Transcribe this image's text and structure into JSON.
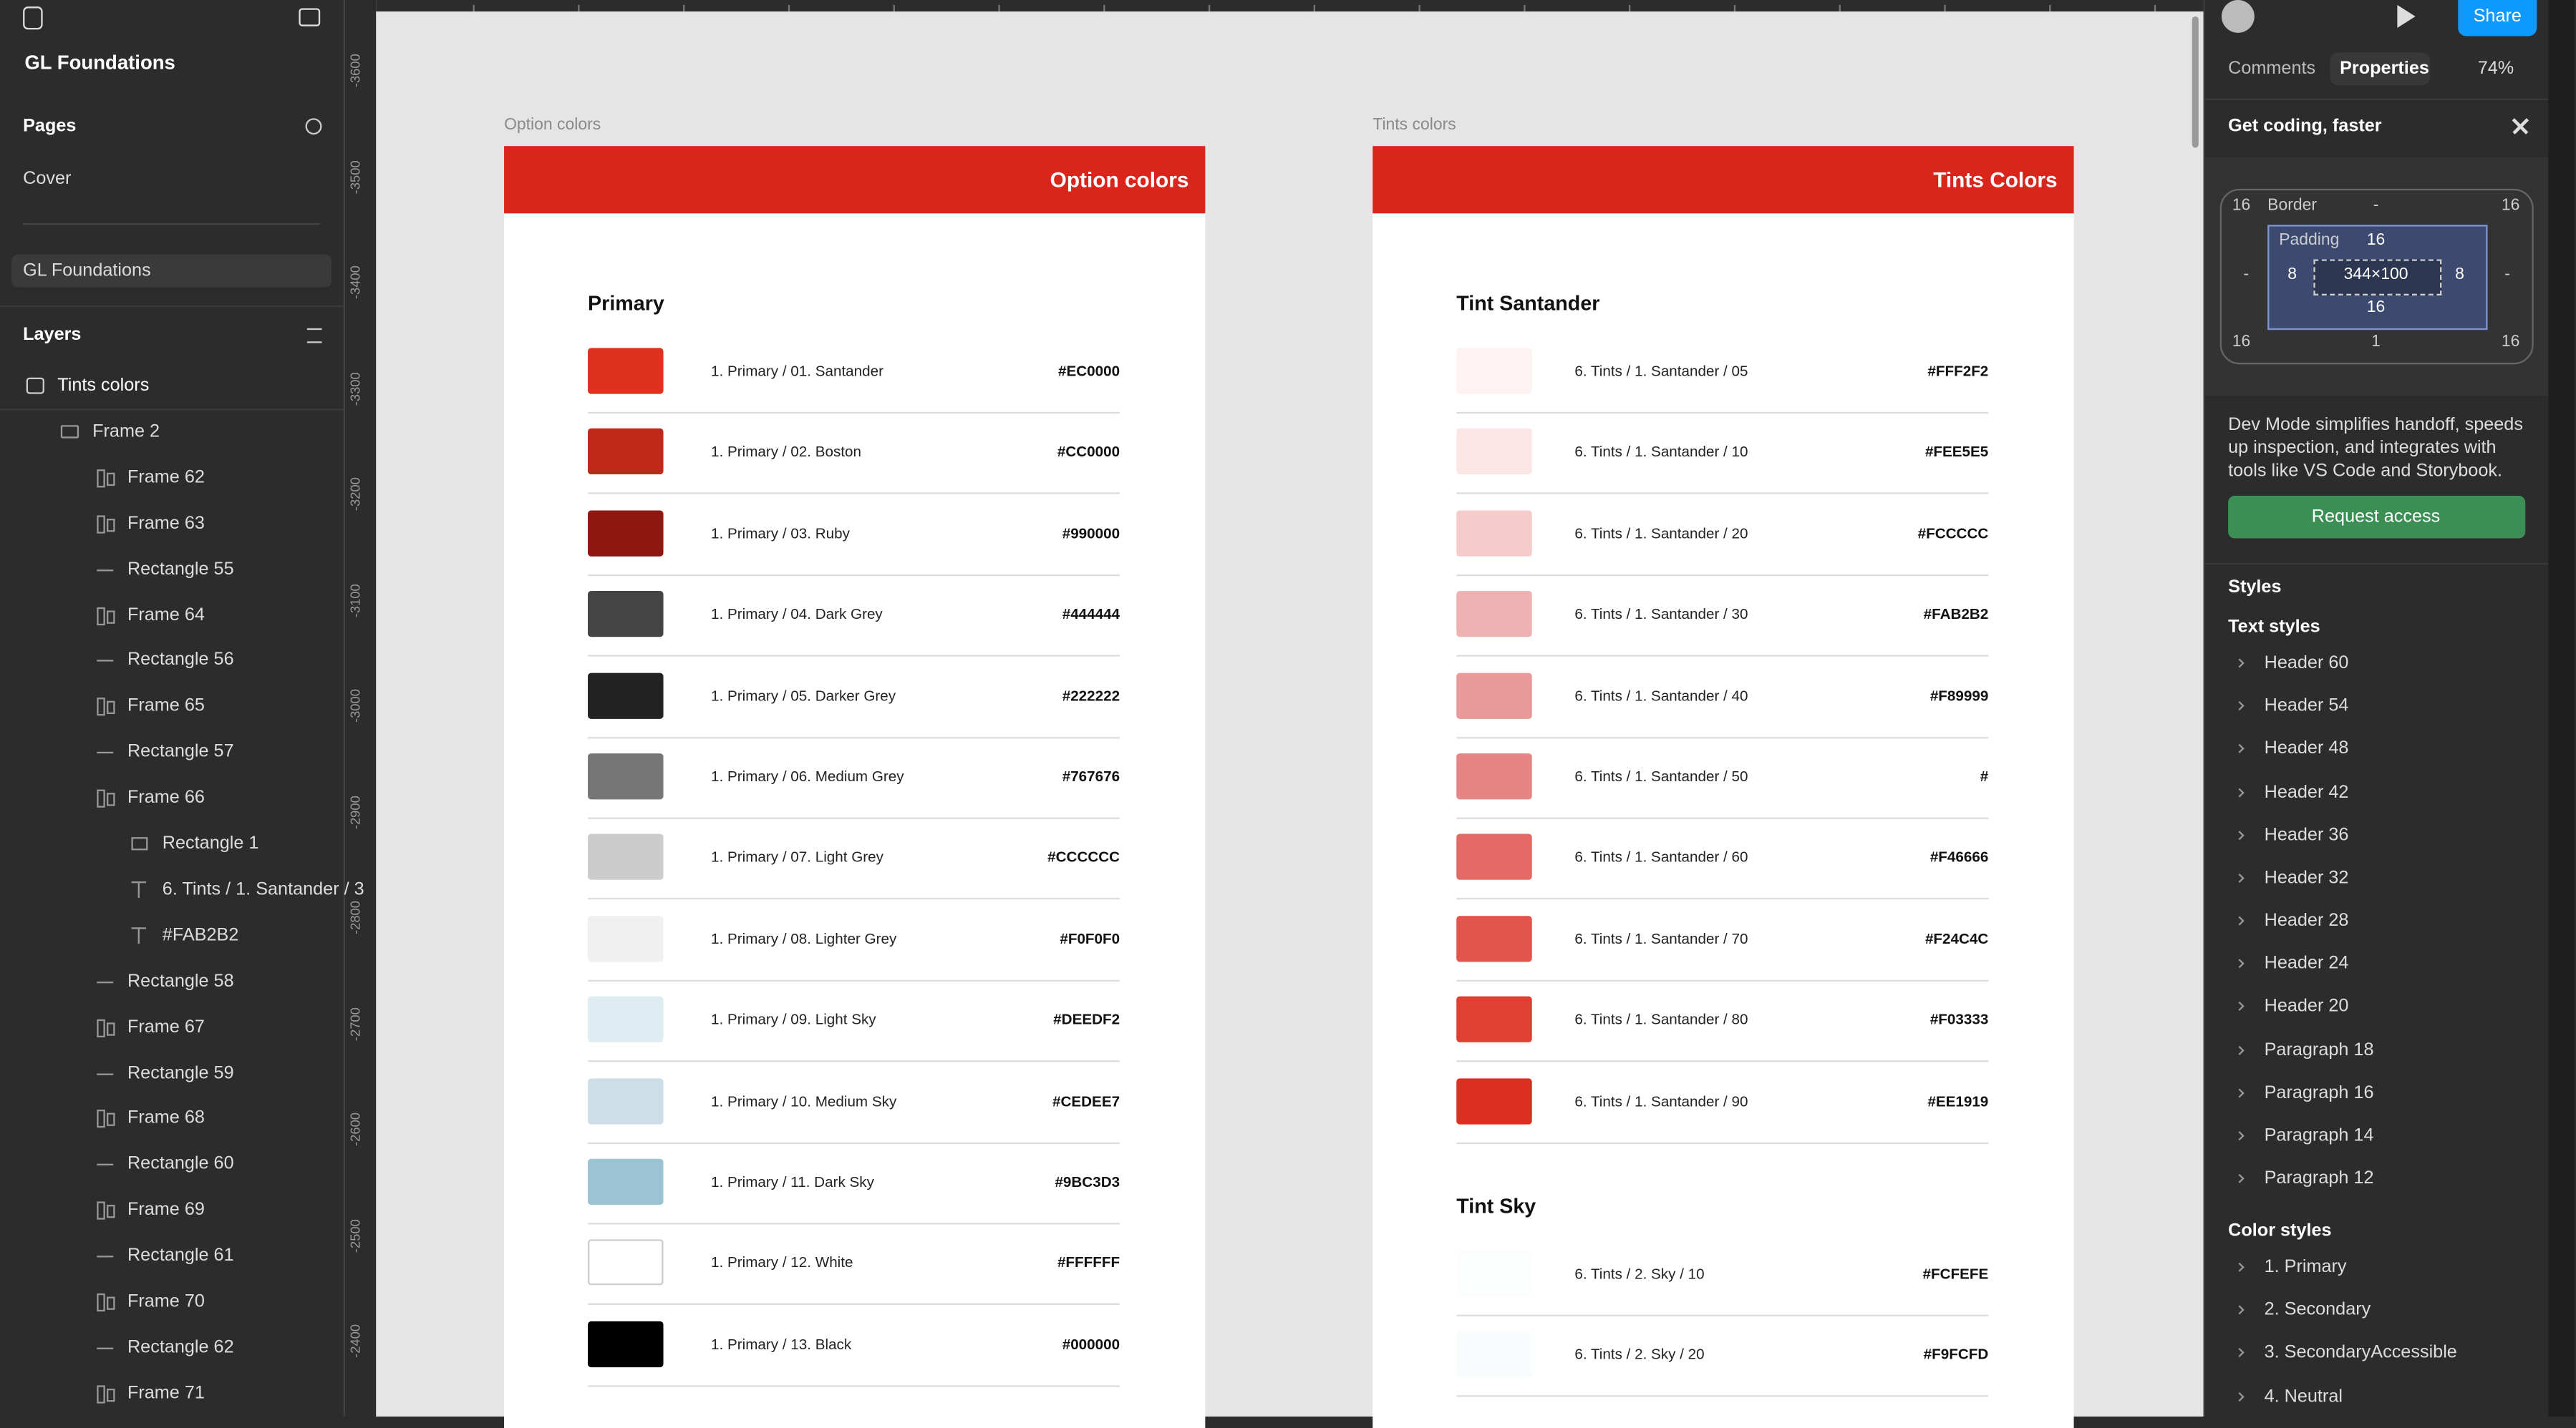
{
  "toolbar": {
    "file_title": "GL Foundations",
    "zoom": "74%",
    "share": "Share",
    "tabs": [
      "Comments",
      "Properties"
    ]
  },
  "pages": {
    "title": "Pages",
    "items": [
      "Cover",
      "GL Foundations"
    ]
  },
  "layers": {
    "title": "Layers",
    "items": [
      "Tints colors",
      "Frame 2",
      "Frame 62",
      "Frame 63",
      "Rectangle 55",
      "Frame 64",
      "Rectangle 56",
      "Frame 65",
      "Rectangle 57",
      "Frame 66",
      "Rectangle 1",
      "6. Tints / 1. Santander / 3",
      "#FAB2B2",
      "Rectangle 58",
      "Frame 67",
      "Rectangle 59",
      "Frame 68",
      "Rectangle 60",
      "Frame 69",
      "Rectangle 61",
      "Frame 70",
      "Rectangle 62",
      "Frame 71"
    ]
  },
  "ruler": [
    "-3600",
    "-3500",
    "-3400",
    "-3300",
    "-3200",
    "-3100",
    "-3000",
    "-2900",
    "-2800",
    "-2700",
    "-2600",
    "-2500",
    "-2400"
  ],
  "frames": [
    {
      "label": "Option colors",
      "header": "Option colors",
      "sections": [
        {
          "title": "Primary",
          "rows": [
            {
              "name": "1. Primary / 01. Santander",
              "hex": "#EC0000",
              "swatch": "#E0301E"
            },
            {
              "name": "1. Primary / 02. Boston",
              "hex": "#CC0000",
              "swatch": "#C0281A"
            },
            {
              "name": "1. Primary / 03. Ruby",
              "hex": "#990000",
              "swatch": "#8E1810"
            },
            {
              "name": "1. Primary / 04. Dark Grey",
              "hex": "#444444",
              "swatch": "#444444"
            },
            {
              "name": "1. Primary / 05. Darker Grey",
              "hex": "#222222",
              "swatch": "#222222"
            },
            {
              "name": "1. Primary / 06. Medium Grey",
              "hex": "#767676",
              "swatch": "#767676"
            },
            {
              "name": "1. Primary / 07. Light Grey",
              "hex": "#CCCCCC",
              "swatch": "#CCCCCC"
            },
            {
              "name": "1. Primary / 08. Lighter Grey",
              "hex": "#F0F0F0",
              "swatch": "#F0F0F0"
            },
            {
              "name": "1. Primary / 09. Light Sky",
              "hex": "#DEEDF2",
              "swatch": "#DEEDF2"
            },
            {
              "name": "1. Primary / 10. Medium Sky",
              "hex": "#CEDEE7",
              "swatch": "#CEDEE7"
            },
            {
              "name": "1. Primary / 11. Dark Sky",
              "hex": "#9BC3D3",
              "swatch": "#9BC3D3"
            },
            {
              "name": "1. Primary / 12. White",
              "hex": "#FFFFFF",
              "swatch": "#FFFFFF"
            },
            {
              "name": "1. Primary / 13. Black",
              "hex": "#000000",
              "swatch": "#000000"
            }
          ]
        }
      ]
    },
    {
      "label": "Tints colors",
      "header": "Tints Colors",
      "sections": [
        {
          "title": "Tint Santander",
          "rows": [
            {
              "name": "6. Tints / 1. Santander / 05",
              "hex": "#FFF2F2",
              "swatch": "#FFF2F2"
            },
            {
              "name": "6. Tints / 1. Santander / 10",
              "hex": "#FEE5E5",
              "swatch": "#FBE5E5"
            },
            {
              "name": "6. Tints / 1. Santander / 20",
              "hex": "#FCCCCC",
              "swatch": "#F5CCCC"
            },
            {
              "name": "6. Tints / 1. Santander / 30",
              "hex": "#FAB2B2",
              "swatch": "#EFB2B2"
            },
            {
              "name": "6. Tints / 1. Santander / 40",
              "hex": "#F89999",
              "swatch": "#EA9999"
            },
            {
              "name": "6. Tints / 1. Santander / 50",
              "hex": "#",
              "swatch": "#E68585"
            },
            {
              "name": "6. Tints / 1. Santander / 60",
              "hex": "#F46666",
              "swatch": "#E46A66"
            },
            {
              "name": "6. Tints / 1. Santander / 70",
              "hex": "#F24C4C",
              "swatch": "#E2554C"
            },
            {
              "name": "6. Tints / 1. Santander / 80",
              "hex": "#F03333",
              "swatch": "#DF4033"
            },
            {
              "name": "6. Tints / 1. Santander / 90",
              "hex": "#EE1919",
              "swatch": "#DE2E22"
            }
          ]
        },
        {
          "title": "Tint Sky",
          "rows": [
            {
              "name": "6. Tints / 2. Sky / 10",
              "hex": "#FCFEFE",
              "swatch": "#FCFEFE"
            },
            {
              "name": "6. Tints / 2. Sky / 20",
              "hex": "#F9FCFD",
              "swatch": "#F9FCFD"
            }
          ]
        }
      ]
    }
  ],
  "inspector": {
    "promo_title": "Get coding, faster",
    "box_model": {
      "border_label": "Border",
      "border_top": "-",
      "border_right": "-",
      "border_bottom": "1",
      "border_left": "-",
      "radius": [
        "16",
        "16",
        "16",
        "16"
      ],
      "padding_label": "Padding",
      "padding_top": "16",
      "padding_right": "8",
      "padding_bottom": "16",
      "padding_left": "8",
      "size": "344×100"
    },
    "description": "Dev Mode simplifies handoff, speeds up inspection, and integrates with tools like VS Code and Storybook.",
    "button": "Request access",
    "styles_title": "Styles",
    "text_styles_title": "Text styles",
    "text_styles": [
      "Header 60",
      "Header 54",
      "Header 48",
      "Header 42",
      "Header 36",
      "Header 32",
      "Header 28",
      "Header 24",
      "Header 20",
      "Paragraph 18",
      "Paragraph 16",
      "Paragraph 14",
      "Paragraph 12"
    ],
    "color_styles_title": "Color styles",
    "color_styles": [
      "1. Primary",
      "2. Secondary",
      "3. SecondaryAccessible",
      "4. Neutral"
    ]
  }
}
